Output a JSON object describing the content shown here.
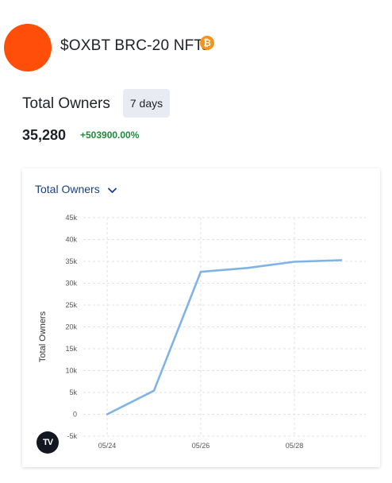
{
  "collection": {
    "title": "$OXBT BRC-20 NFTs",
    "chain_icon": "bitcoin-icon",
    "avatar_color": "#ff4e0a"
  },
  "metric": {
    "label": "Total Owners",
    "range_label": "7 days",
    "value": "35,280",
    "change": "+503900.00%",
    "change_color": "#1f8a3b"
  },
  "chart_card": {
    "dropdown_label": "Total Owners",
    "logo_icon": "tradingview-logo-icon"
  },
  "chart_data": {
    "type": "line",
    "title": "",
    "xlabel": "",
    "ylabel": "Total Owners",
    "ylim": [
      -5000,
      45000
    ],
    "yticks": [
      -5000,
      0,
      5000,
      10000,
      15000,
      20000,
      25000,
      30000,
      35000,
      40000,
      45000
    ],
    "ytick_labels": [
      "-5k",
      "0",
      "5k",
      "10k",
      "15k",
      "20k",
      "25k",
      "30k",
      "35k",
      "40k",
      "45k"
    ],
    "x_tick_labels": [
      "05/24",
      "05/26",
      "05/28"
    ],
    "x_tick_positions": [
      0,
      2,
      4
    ],
    "grid": true,
    "line_color": "#7fb3e6",
    "series": [
      {
        "x": [
          0,
          1,
          2,
          3,
          4,
          5
        ],
        "dates": [
          "05/24",
          "05/25",
          "05/26",
          "05/27",
          "05/28",
          "05/29"
        ],
        "values": [
          0,
          5400,
          32600,
          33500,
          34900,
          35280
        ]
      }
    ]
  }
}
